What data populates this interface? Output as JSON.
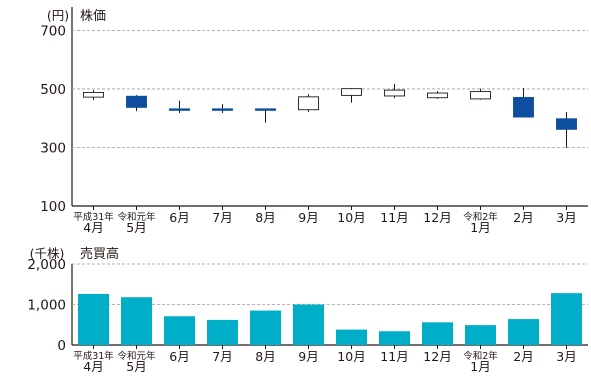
{
  "chart_data": [
    {
      "type": "candlestick",
      "title": "株価",
      "unit_label": "(円)",
      "ylim": [
        100,
        780
      ],
      "yticks": [
        "100",
        "300",
        "500",
        "700"
      ],
      "grid": "horizontal-dashed",
      "categories": [
        [
          "平成31年",
          "4月"
        ],
        [
          "令和元年",
          "5月"
        ],
        [
          "6月"
        ],
        [
          "7月"
        ],
        [
          "8月"
        ],
        [
          "9月"
        ],
        [
          "10月"
        ],
        [
          "11月"
        ],
        [
          "12月"
        ],
        [
          "令和2年",
          "1月"
        ],
        [
          "2月"
        ],
        [
          "3月"
        ]
      ],
      "series": [
        {
          "open": 472,
          "close": 488,
          "high": 496,
          "low": 462
        },
        {
          "open": 475,
          "close": 437,
          "high": 479,
          "low": 424
        },
        {
          "open": 432,
          "close": 429,
          "high": 460,
          "low": 418
        },
        {
          "open": 432,
          "close": 429,
          "high": 448,
          "low": 418
        },
        {
          "open": 432,
          "close": 429,
          "high": 433,
          "low": 385
        },
        {
          "open": 429,
          "close": 473,
          "high": 482,
          "low": 421
        },
        {
          "open": 478,
          "close": 501,
          "high": 503,
          "low": 453
        },
        {
          "open": 476,
          "close": 496,
          "high": 517,
          "low": 468
        },
        {
          "open": 470,
          "close": 486,
          "high": 493,
          "low": 466
        },
        {
          "open": 466,
          "close": 491,
          "high": 501,
          "low": 463
        },
        {
          "open": 471,
          "close": 404,
          "high": 503,
          "low": 403
        },
        {
          "open": 398,
          "close": 362,
          "high": 421,
          "low": 298
        }
      ],
      "up_color": "#ffffff",
      "down_color": "#0d4e9e"
    },
    {
      "type": "bar",
      "title": "売買高",
      "unit_label": "(千株)",
      "ylim": [
        0,
        2000
      ],
      "yticks": [
        "0",
        "1,000",
        "2,000"
      ],
      "grid": "horizontal-dashed",
      "categories": [
        [
          "平成31年",
          "4月"
        ],
        [
          "令和元年",
          "5月"
        ],
        [
          "6月"
        ],
        [
          "7月"
        ],
        [
          "8月"
        ],
        [
          "9月"
        ],
        [
          "10月"
        ],
        [
          "11月"
        ],
        [
          "12月"
        ],
        [
          "令和2年",
          "1月"
        ],
        [
          "2月"
        ],
        [
          "3月"
        ]
      ],
      "values": [
        1260,
        1180,
        710,
        620,
        850,
        1000,
        380,
        340,
        560,
        490,
        640,
        1280
      ],
      "bar_color": "#00aec7"
    }
  ]
}
